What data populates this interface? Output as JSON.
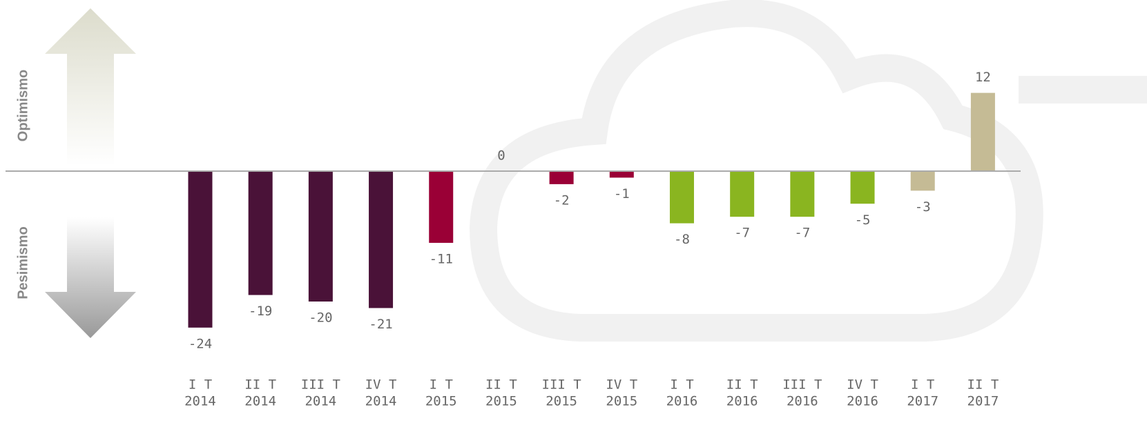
{
  "chart_data": {
    "type": "bar",
    "axis_labels": {
      "top": "Optimismo",
      "bottom": "Pesimismo"
    },
    "categories": [
      [
        "I T",
        "2014"
      ],
      [
        "II T",
        "2014"
      ],
      [
        "III T",
        "2014"
      ],
      [
        "IV T",
        "2014"
      ],
      [
        "I T",
        "2015"
      ],
      [
        "II T",
        "2015"
      ],
      [
        "III T",
        "2015"
      ],
      [
        "IV T",
        "2015"
      ],
      [
        "I T",
        "2016"
      ],
      [
        "II T",
        "2016"
      ],
      [
        "III T",
        "2016"
      ],
      [
        "IV T",
        "2016"
      ],
      [
        "I T",
        "2017"
      ],
      [
        "II T",
        "2017"
      ]
    ],
    "values": [
      -24,
      -19,
      -20,
      -21,
      -11,
      0,
      -2,
      -1,
      -8,
      -7,
      -7,
      -5,
      -3,
      12
    ],
    "colors": [
      "#4a1238",
      "#4a1238",
      "#4a1238",
      "#4a1238",
      "#9a0036",
      "#9a0036",
      "#9a0036",
      "#9a0036",
      "#8ab520",
      "#8ab520",
      "#8ab520",
      "#8ab520",
      "#c5bb95",
      "#c5bb95"
    ],
    "ylim": [
      -26,
      16
    ]
  }
}
